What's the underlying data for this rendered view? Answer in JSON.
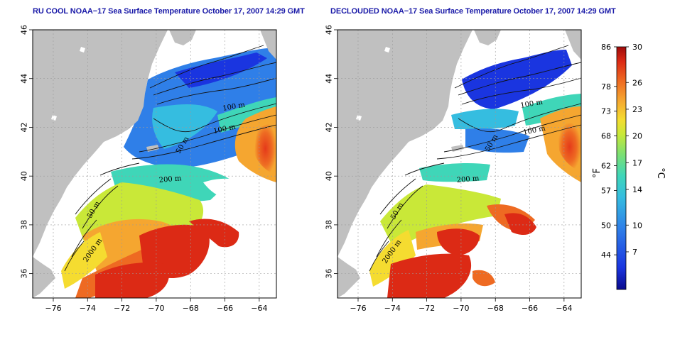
{
  "panels": [
    {
      "id": "left",
      "title": "RU COOL NOAA−17 Sea Surface Temperature October 17, 2007 14:29 GMT"
    },
    {
      "id": "right",
      "title": "DECLOUDED NOAA−17 Sea Surface Temperature October 17, 2007 14:29 GMT"
    }
  ],
  "axes": {
    "x_ticks": [
      "−76",
      "−74",
      "−72",
      "−70",
      "−68",
      "−66",
      "−64"
    ],
    "y_ticks": [
      "36",
      "38",
      "40",
      "42",
      "44",
      "46"
    ],
    "x_range": [
      -77.2,
      -63
    ],
    "y_range": [
      35,
      46
    ]
  },
  "contour_labels": {
    "left": [
      "100 m",
      "100 m",
      "50 m",
      "200 m",
      "50 m",
      "2000 m"
    ],
    "right": [
      "100 m",
      "100 m",
      "50 m",
      "200 m",
      "50 m",
      "2000 m"
    ]
  },
  "colorbar": {
    "unit_f": "°F",
    "unit_c": "°C",
    "fahrenheit_ticks": [
      "86",
      "78",
      "73",
      "68",
      "62",
      "57",
      "50",
      "44"
    ],
    "celsius_ticks": [
      "30",
      "26",
      "23",
      "20",
      "17",
      "14",
      "10",
      "7"
    ],
    "colors": [
      "#0a0a8c",
      "#1a35e0",
      "#2f7fe8",
      "#35bde0",
      "#3fd6b8",
      "#7ee070",
      "#c9e838",
      "#f5dc30",
      "#f5a630",
      "#ee6a22",
      "#dc2a15",
      "#9e0b0b"
    ]
  },
  "colors": {
    "land": "#c0c0c0",
    "title": "#1a1aa8",
    "grid": "#9a9a9a"
  }
}
